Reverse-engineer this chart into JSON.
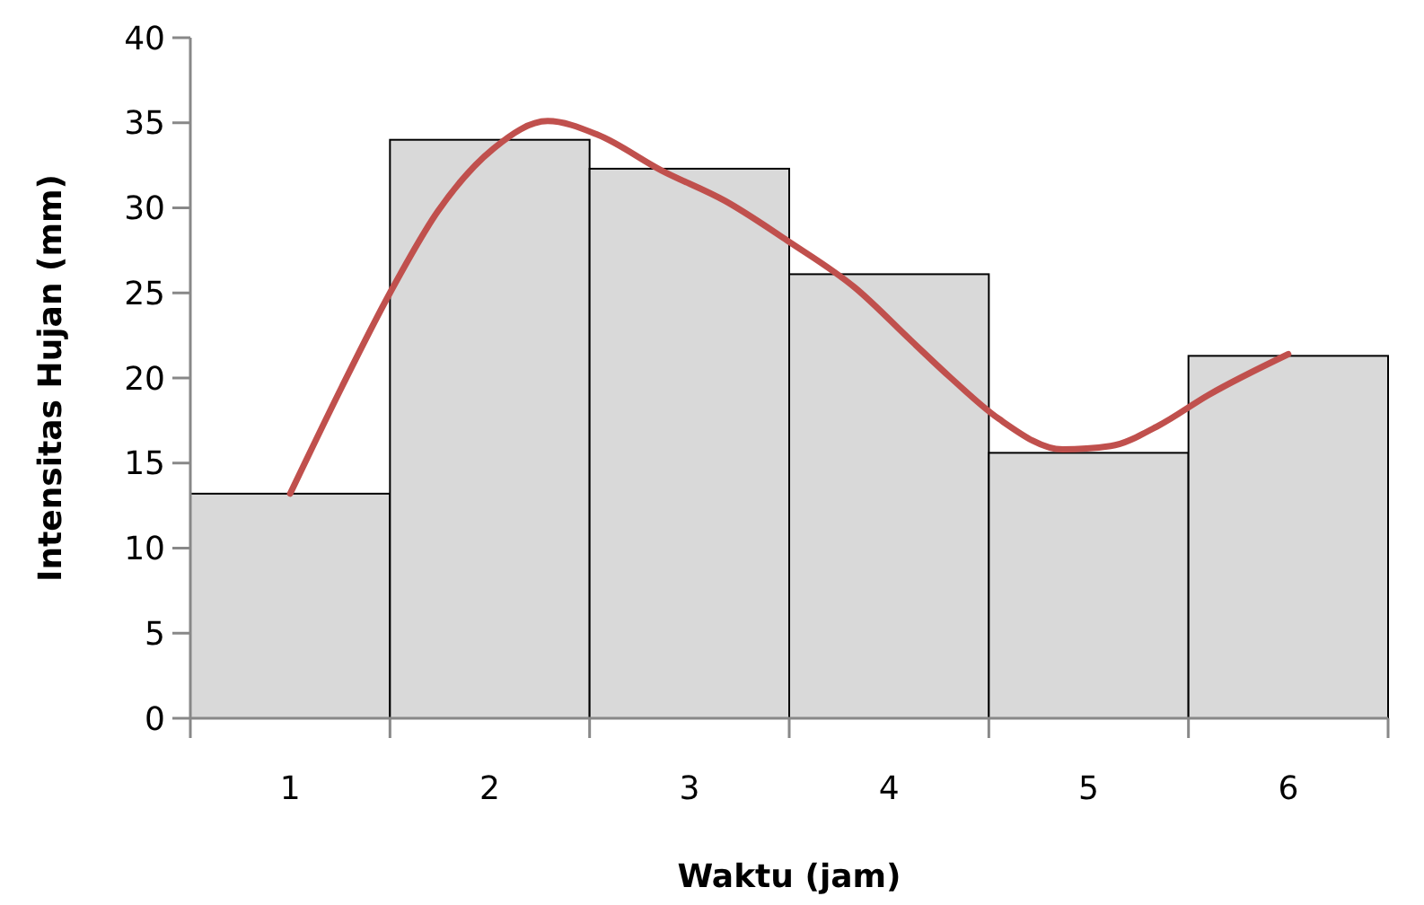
{
  "chart_data": {
    "type": "bar",
    "xlabel": "Waktu  (jam)",
    "ylabel": "Intensitas Hujan  (mm)",
    "x": [
      1,
      2,
      3,
      4,
      5,
      6
    ],
    "xlim": [
      0.5,
      6.5
    ],
    "xticks": [
      {
        "value": 0.5,
        "label": null
      },
      1,
      {
        "value": 1.5,
        "label": null
      },
      2,
      {
        "value": 2.5,
        "label": null
      },
      3,
      {
        "value": 3.5,
        "label": null
      },
      4,
      {
        "value": 4.5,
        "label": null
      },
      5,
      {
        "value": 5.5,
        "label": null
      },
      6,
      {
        "value": 6.5,
        "label": null
      }
    ],
    "ylim": [
      0,
      40
    ],
    "yticks": [
      0,
      5,
      10,
      15,
      20,
      25,
      30,
      35,
      40
    ],
    "grid": false,
    "series": [
      {
        "color": "#d9d9d9",
        "values": [
          13.2,
          34,
          32.3,
          26.1,
          15.6,
          21.3
        ]
      },
      {
        "type": "line",
        "color": "#c0504d",
        "line_style": "solid",
        "marker": "none",
        "x": [
          1,
          1.26,
          1.5,
          1.74,
          2.02,
          2.29,
          2.54,
          2.86,
          3.18,
          3.5,
          3.83,
          4.11,
          4.31,
          4.55,
          4.87,
          5.11,
          5.35,
          5.6,
          6
        ],
        "values": [
          13.2,
          19.5,
          25,
          29.8,
          33.5,
          35.1,
          34.3,
          32.2,
          30.4,
          28,
          25.3,
          22.2,
          20,
          17.6,
          15.8,
          16,
          17.2,
          19,
          21.4
        ]
      }
    ]
  }
}
